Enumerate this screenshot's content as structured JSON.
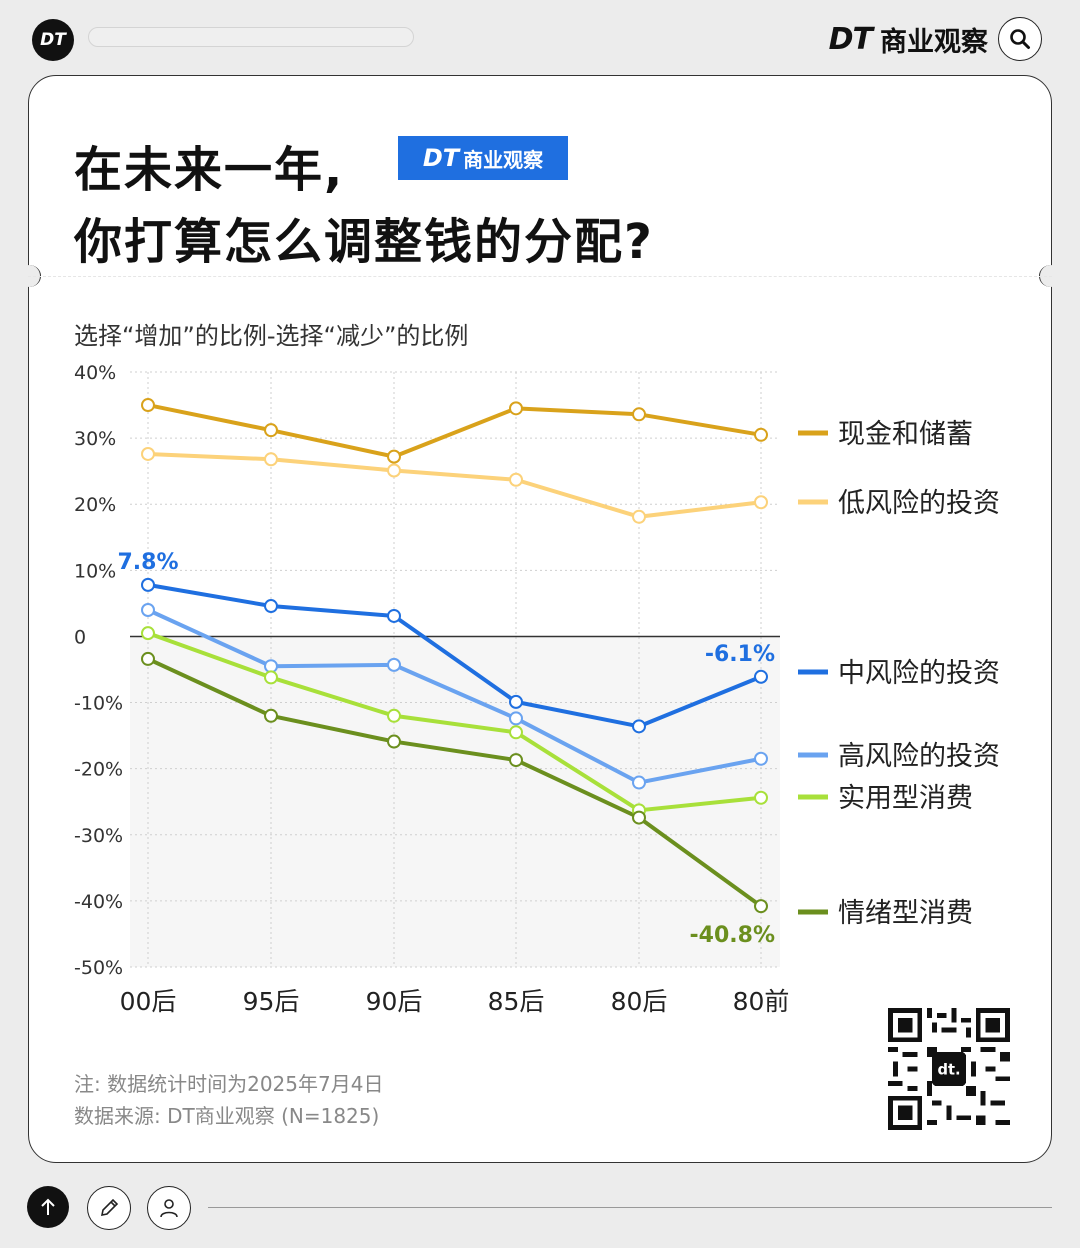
{
  "header": {
    "logo_text": "DT",
    "brand_dt": "DT",
    "brand_name": "商业观察",
    "search_icon": "search-icon"
  },
  "title": {
    "line1": "在未来一年,",
    "line2": "你打算怎么调整钱的分配?",
    "badge_dt": "DT",
    "badge_name": "商业观察"
  },
  "subtitle": "选择“增加”的比例-选择“减少”的比例",
  "chart_data": {
    "type": "line",
    "categories": [
      "00后",
      "95后",
      "90后",
      "85后",
      "80后",
      "80前"
    ],
    "ylim": [
      -50,
      40
    ],
    "y_ticks": [
      40,
      30,
      20,
      10,
      0,
      -10,
      -20,
      -30,
      -40,
      -50
    ],
    "y_tick_labels": [
      "40%",
      "30%",
      "20%",
      "10%",
      "0",
      "-10%",
      "-20%",
      "-30%",
      "-40%",
      "-50%"
    ],
    "grid": true,
    "legend_position": "right",
    "series": [
      {
        "name": "现金和储蓄",
        "color": "#d9a21b",
        "values": [
          35.0,
          31.2,
          27.2,
          34.5,
          33.6,
          30.5
        ]
      },
      {
        "name": "低风险的投资",
        "color": "#fcd27a",
        "values": [
          27.6,
          26.8,
          25.1,
          23.7,
          18.1,
          20.3
        ]
      },
      {
        "name": "中风险的投资",
        "color": "#1f6fe0",
        "values": [
          7.8,
          4.6,
          3.1,
          -9.9,
          -13.6,
          -6.1
        ]
      },
      {
        "name": "高风险的投资",
        "color": "#6aa3f0",
        "values": [
          4.0,
          -4.5,
          -4.3,
          -12.4,
          -22.1,
          -18.5
        ]
      },
      {
        "name": "实用型消费",
        "color": "#a8e03a",
        "values": [
          0.5,
          -6.2,
          -12.0,
          -14.5,
          -26.3,
          -24.4
        ]
      },
      {
        "name": "情绪型消费",
        "color": "#6b8f1e",
        "values": [
          -3.4,
          -12.0,
          -15.9,
          -18.7,
          -27.4,
          -40.8
        ]
      }
    ],
    "annotations": [
      {
        "text": "7.8%",
        "series": "中风险的投资",
        "category": "00后",
        "color": "#1f6fe0"
      },
      {
        "text": "-6.1%",
        "series": "中风险的投资",
        "category": "80前",
        "color": "#1f6fe0"
      },
      {
        "text": "-40.8%",
        "series": "情绪型消费",
        "category": "80前",
        "color": "#6b8f1e"
      }
    ]
  },
  "notes": {
    "note": "注: 数据统计时间为2025年7月4日",
    "source": "数据来源: DT商业观察 (N=1825)"
  },
  "footer": {
    "up_icon": "arrow-up-icon",
    "edit_icon": "pencil-icon",
    "user_icon": "user-icon"
  }
}
